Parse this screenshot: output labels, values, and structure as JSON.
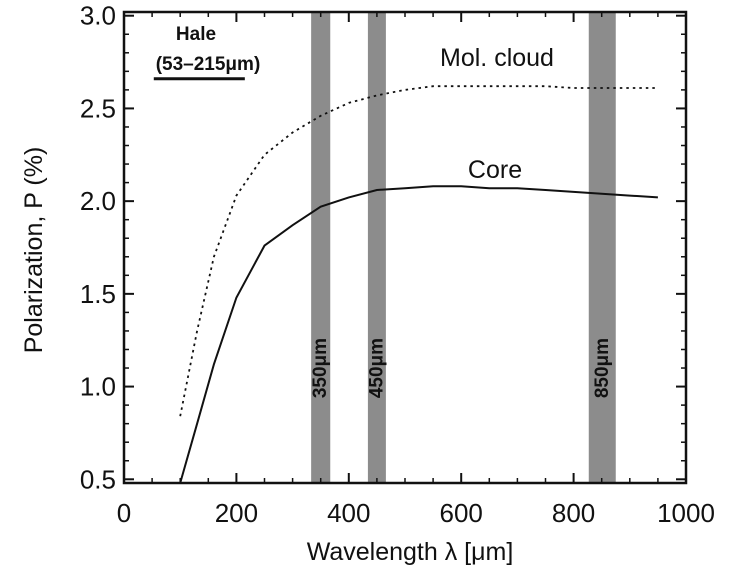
{
  "chart_data": {
    "type": "line",
    "xlabel": "Wavelength λ [μm]",
    "ylabel": "Polarization, P (%)",
    "xlim": [
      0,
      1000
    ],
    "ylim": [
      0.48,
      3.02
    ],
    "x_ticks": [
      0,
      200,
      400,
      600,
      800,
      1000
    ],
    "y_ticks": [
      0.5,
      1.0,
      1.5,
      2.0,
      2.5,
      3.0
    ],
    "x_tick_labels": [
      "0",
      "200",
      "400",
      "600",
      "800",
      "1000"
    ],
    "y_tick_labels": [
      "0.5",
      "1.0",
      "1.5",
      "2.0",
      "2.5",
      "3.0"
    ],
    "grid": false,
    "series": [
      {
        "name": "Core",
        "style": "solid",
        "color": "#111111",
        "x": [
          100,
          130,
          160,
          200,
          250,
          300,
          350,
          400,
          450,
          500,
          550,
          600,
          650,
          700,
          750,
          800,
          850,
          900,
          950
        ],
        "y": [
          0.48,
          0.8,
          1.12,
          1.48,
          1.76,
          1.87,
          1.97,
          2.02,
          2.06,
          2.07,
          2.08,
          2.08,
          2.07,
          2.07,
          2.06,
          2.05,
          2.04,
          2.03,
          2.02
        ]
      },
      {
        "name": "Mol. cloud",
        "style": "dotted",
        "color": "#111111",
        "x": [
          100,
          130,
          160,
          200,
          250,
          300,
          350,
          400,
          450,
          500,
          550,
          600,
          650,
          700,
          750,
          800,
          850,
          900,
          950
        ],
        "y": [
          0.84,
          1.3,
          1.7,
          2.03,
          2.25,
          2.37,
          2.46,
          2.53,
          2.57,
          2.6,
          2.62,
          2.62,
          2.62,
          2.62,
          2.62,
          2.61,
          2.61,
          2.61,
          2.61
        ]
      }
    ],
    "bands": [
      {
        "label": "350μm",
        "x0": 333,
        "x1": 367,
        "color": "#8c8c8c"
      },
      {
        "label": "450μm",
        "x0": 434,
        "x1": 466,
        "color": "#8c8c8c"
      },
      {
        "label": "850μm",
        "x0": 827,
        "x1": 875,
        "color": "#8c8c8c"
      }
    ],
    "annotations": {
      "hale_line1": "Hale",
      "hale_line2": "(53–215μm)",
      "hale_range": [
        53,
        215
      ],
      "hale_y": 2.66
    }
  }
}
